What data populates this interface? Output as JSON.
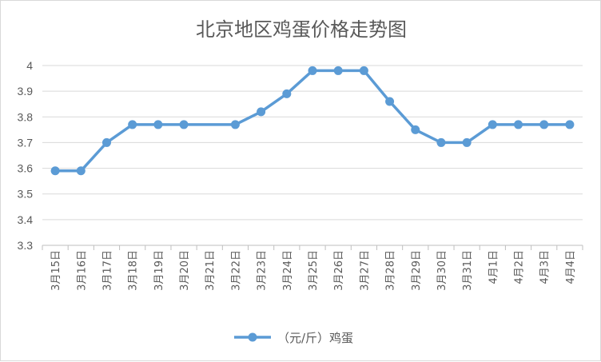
{
  "chart_data": {
    "type": "line",
    "title": "北京地区鸡蛋价格走势图",
    "xlabel": "",
    "ylabel": "",
    "ylim": [
      3.3,
      4
    ],
    "yticks": [
      "3.3",
      "3.4",
      "3.5",
      "3.6",
      "3.7",
      "3.8",
      "3.9",
      "4"
    ],
    "categories": [
      "3月15日",
      "3月16日",
      "3月17日",
      "3月18日",
      "3月19日",
      "3月20日",
      "3月21日",
      "3月22日",
      "3月23日",
      "3月24日",
      "3月25日",
      "3月26日",
      "3月27日",
      "3月28日",
      "3月29日",
      "3月30日",
      "3月31日",
      "4月1日",
      "4月2日",
      "4月3日",
      "4月4日"
    ],
    "series": [
      {
        "name": "（元/斤）鸡蛋",
        "values": [
          3.59,
          3.59,
          3.7,
          3.77,
          3.77,
          3.77,
          null,
          3.77,
          3.82,
          3.89,
          3.98,
          3.98,
          3.98,
          3.86,
          3.75,
          3.7,
          3.7,
          3.77,
          3.77,
          3.77,
          3.77
        ],
        "color": "#5b9bd5"
      }
    ],
    "grid": true,
    "legend_position": "bottom"
  }
}
